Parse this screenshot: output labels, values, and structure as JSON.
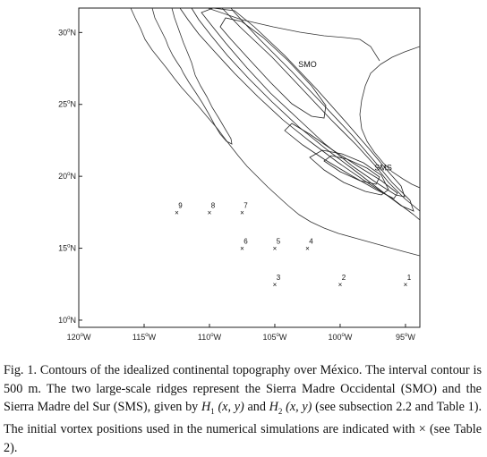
{
  "figure": {
    "y_ticks": [
      {
        "deg": "30",
        "hemi": "N",
        "value": 30
      },
      {
        "deg": "25",
        "hemi": "N",
        "value": 25
      },
      {
        "deg": "20",
        "hemi": "N",
        "value": 20
      },
      {
        "deg": "15",
        "hemi": "N",
        "value": 15
      },
      {
        "deg": "10",
        "hemi": "N",
        "value": 10
      }
    ],
    "x_ticks": [
      {
        "deg": "120",
        "hemi": "W",
        "value": -120
      },
      {
        "deg": "115",
        "hemi": "W",
        "value": -115
      },
      {
        "deg": "110",
        "hemi": "W",
        "value": -110
      },
      {
        "deg": "105",
        "hemi": "W",
        "value": -105
      },
      {
        "deg": "100",
        "hemi": "W",
        "value": -100
      },
      {
        "deg": "95",
        "hemi": "W",
        "value": -95
      }
    ],
    "region_labels": [
      {
        "text": "SMO",
        "lon": -102.5,
        "lat": 27.6
      },
      {
        "text": "SMS",
        "lon": -96.7,
        "lat": 20.4
      }
    ],
    "vortex_positions": [
      {
        "id": "1",
        "lon": -95.0,
        "lat": 12.5
      },
      {
        "id": "2",
        "lon": -100.0,
        "lat": 12.5
      },
      {
        "id": "3",
        "lon": -105.0,
        "lat": 12.5
      },
      {
        "id": "4",
        "lon": -102.5,
        "lat": 15.0
      },
      {
        "id": "5",
        "lon": -105.0,
        "lat": 15.0
      },
      {
        "id": "6",
        "lon": -107.5,
        "lat": 15.0
      },
      {
        "id": "7",
        "lon": -107.5,
        "lat": 17.5
      },
      {
        "id": "8",
        "lon": -110.0,
        "lat": 17.5
      },
      {
        "id": "9",
        "lon": -112.5,
        "lat": 17.5
      }
    ],
    "marker_symbol": "×",
    "axis_ranges": {
      "lon": [
        -120,
        -93.9
      ],
      "lat": [
        9.5,
        31.7
      ]
    }
  },
  "caption": {
    "text_1": "Fig. 1. Contours of the idealized continental topography over México. The interval contour is 500 m. The two large-scale ridges represent the Sierra Madre Occidental (SMO) and the Sierra Madre del Sur (SMS), given by ",
    "h1": "H",
    "h1_sub": "1",
    "xy_1": " (x, y)",
    "and": " and ",
    "h2": "H",
    "h2_sub": "2",
    "xy_2": " (x, y)",
    "text_2": " (see subsection 2.2 and Table 1). The initial vortex positions used in the numerical simulations are indicated with ",
    "symbol": "×",
    "text_3": " (see Table 2)."
  }
}
